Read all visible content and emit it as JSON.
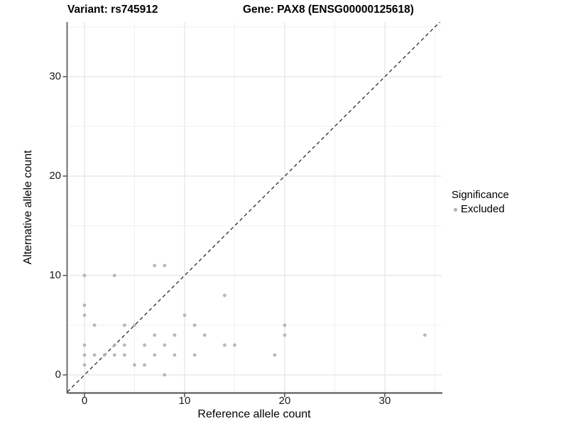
{
  "chart_data": {
    "type": "scatter",
    "title_left": "Variant: rs745912",
    "title_right": "Gene: PAX8 (ENSG00000125618)",
    "xlabel": "Reference allele count",
    "ylabel": "Alternative allele count",
    "x_ticks": [
      0,
      10,
      20,
      30
    ],
    "y_ticks": [
      0,
      10,
      20,
      30
    ],
    "x_minor_ticks": [
      5,
      15,
      25,
      35
    ],
    "y_minor_ticks": [
      5,
      15,
      25,
      35
    ],
    "xlim": [
      -1.7,
      35.7
    ],
    "ylim": [
      -1.7,
      35.7
    ],
    "grid": true,
    "identity_line": {
      "type": "y=x",
      "style": "dashed",
      "color": "#1a1a1a"
    },
    "series": [
      {
        "name": "Excluded",
        "color": "#b0b0b0",
        "points": [
          [
            0,
            1
          ],
          [
            0,
            2
          ],
          [
            0,
            3
          ],
          [
            0,
            6
          ],
          [
            0,
            7
          ],
          [
            0,
            10
          ],
          [
            1,
            2
          ],
          [
            1,
            5
          ],
          [
            2,
            2
          ],
          [
            3,
            2
          ],
          [
            3,
            3
          ],
          [
            3,
            10
          ],
          [
            4,
            2
          ],
          [
            4,
            3
          ],
          [
            4,
            5
          ],
          [
            5,
            1
          ],
          [
            5,
            5
          ],
          [
            6,
            1
          ],
          [
            6,
            3
          ],
          [
            7,
            2
          ],
          [
            7,
            4
          ],
          [
            7,
            11
          ],
          [
            8,
            0
          ],
          [
            8,
            3
          ],
          [
            8,
            11
          ],
          [
            9,
            2
          ],
          [
            9,
            4
          ],
          [
            10,
            6
          ],
          [
            11,
            2
          ],
          [
            11,
            5
          ],
          [
            12,
            4
          ],
          [
            14,
            3
          ],
          [
            14,
            8
          ],
          [
            15,
            3
          ],
          [
            19,
            2
          ],
          [
            20,
            4
          ],
          [
            20,
            5
          ],
          [
            34,
            4
          ]
        ]
      }
    ],
    "legend": {
      "title": "Significance",
      "position": "right",
      "items": [
        {
          "label": "Excluded",
          "color": "#b0b0b0"
        }
      ]
    },
    "colors": {
      "point": "#b0b0b0",
      "grid_major": "#e4e4e4",
      "grid_minor": "#efefef",
      "axis_line": "#4d4d4d",
      "tick_mark": "#333333",
      "text": "#000000"
    }
  }
}
